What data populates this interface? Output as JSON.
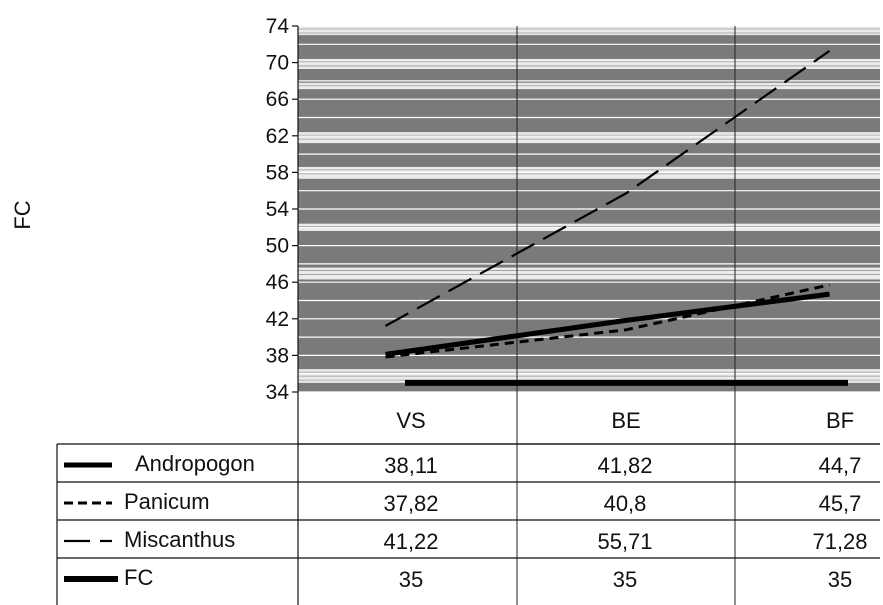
{
  "chart_data": {
    "type": "line",
    "title": "",
    "xlabel": "",
    "ylabel": "FC",
    "categories": [
      "VS",
      "BE",
      "BF"
    ],
    "ylim": [
      34,
      74
    ],
    "yticks": [
      34,
      38,
      42,
      46,
      50,
      54,
      58,
      62,
      66,
      70,
      74
    ],
    "grid": true,
    "legend": "data-table",
    "series": [
      {
        "name": "Andropogon",
        "values": [
          38.11,
          41.82,
          44.7
        ],
        "labels": [
          "38,11",
          "41,82",
          "44,7"
        ],
        "style": "double-solid"
      },
      {
        "name": "Panicum",
        "values": [
          37.82,
          40.8,
          45.7
        ],
        "labels": [
          "37,82",
          "40,8",
          "45,7"
        ],
        "style": "short-dash"
      },
      {
        "name": "Miscanthus",
        "values": [
          41.22,
          55.71,
          71.28
        ],
        "labels": [
          "41,22",
          "55,71",
          "71,28"
        ],
        "style": "long-dash"
      },
      {
        "name": "FC",
        "values": [
          35,
          35,
          35
        ],
        "labels": [
          "35",
          "35",
          "35"
        ],
        "style": "thick-solid"
      }
    ],
    "colors": {
      "plot_band": "#7a7a7a",
      "line": "#000000",
      "background": "#ffffff"
    }
  }
}
